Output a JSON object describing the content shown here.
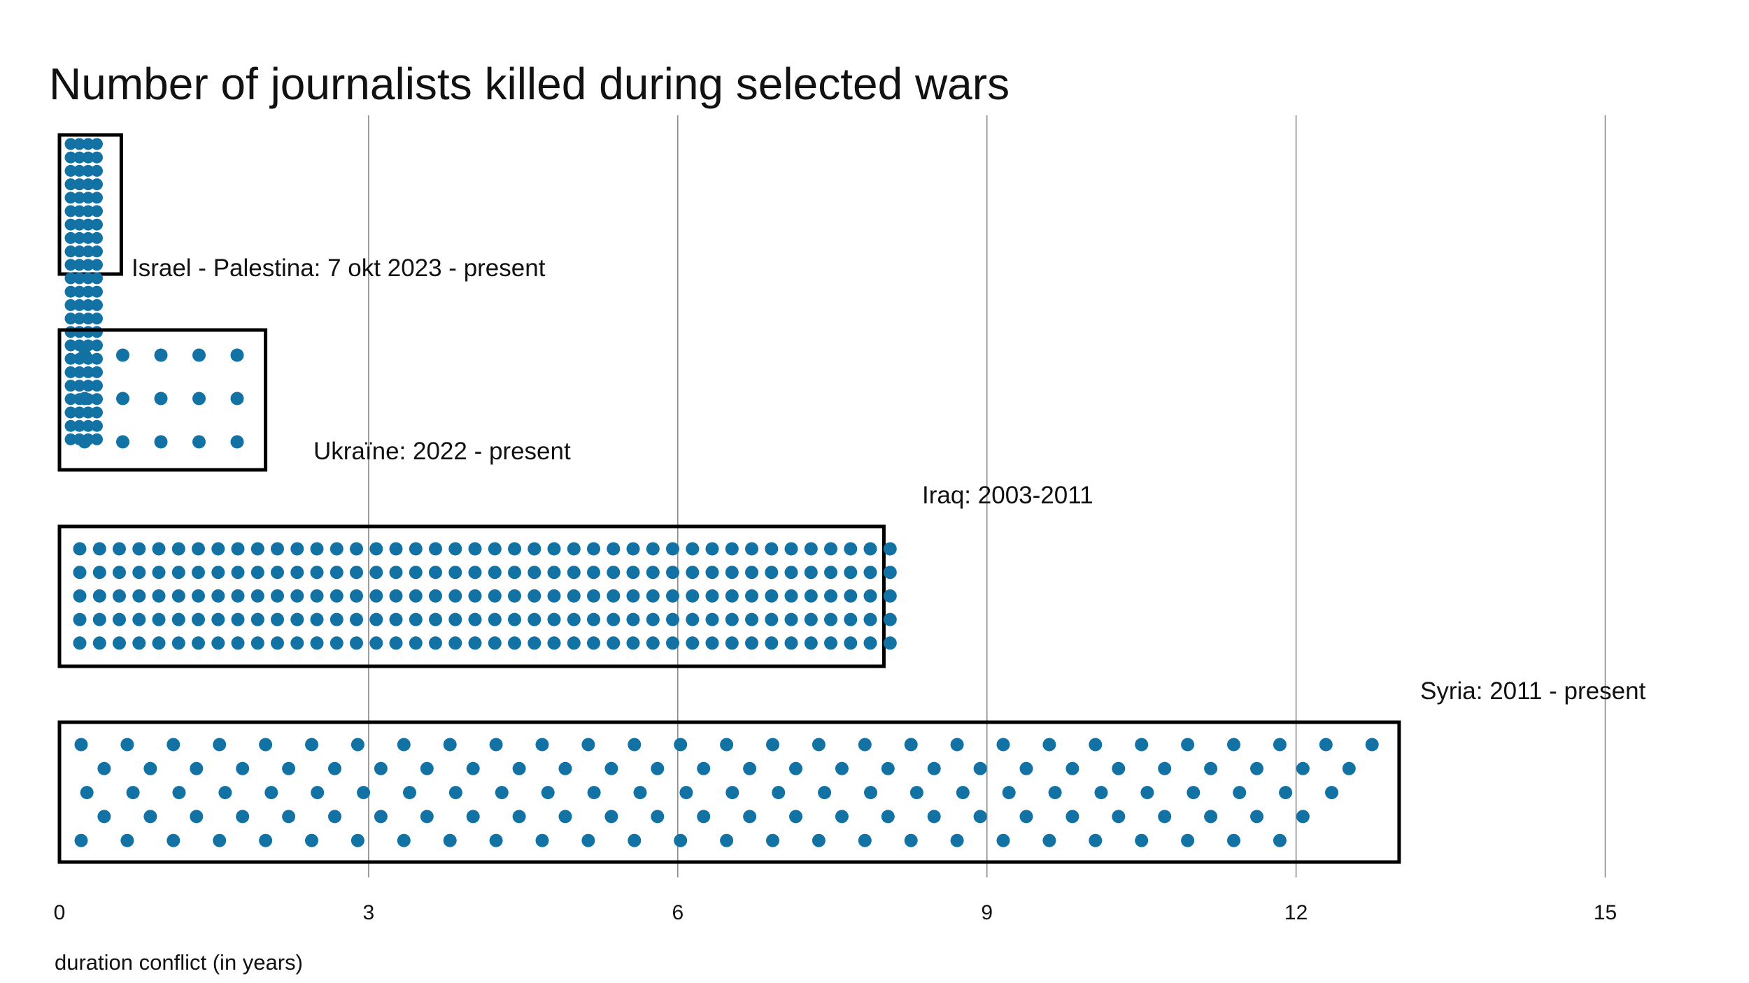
{
  "chart_data": {
    "type": "unit-bar",
    "title": "Number of journalists killed during selected wars",
    "xlabel": "duration conflict (in years)",
    "ylabel": "",
    "xlim": [
      0,
      15
    ],
    "xticks": [
      0,
      3,
      6,
      9,
      12,
      15
    ],
    "tick_labels": [
      "0",
      "3",
      "6",
      "9",
      "12",
      "15"
    ],
    "grid": true,
    "dot_color": "#1372a4",
    "unit": "1 dot = 1 journalist killed",
    "series": [
      {
        "name": "Israel - Palestina",
        "label": "Israel - Palestina: 7 okt 2023 - present",
        "start": 0,
        "duration": 0.6,
        "journalists": 92
      },
      {
        "name": "Ukraïne",
        "label": "Ukraïne: 2022 - present",
        "start": 0,
        "duration": 2,
        "journalists": 15
      },
      {
        "name": "Iraq",
        "label": "Iraq: 2003-2011",
        "start": 0,
        "duration": 8,
        "journalists": 210
      },
      {
        "name": "Syria",
        "label": "Syria: 2011 - present",
        "start": 0,
        "duration": 13,
        "journalists": 139
      }
    ]
  }
}
